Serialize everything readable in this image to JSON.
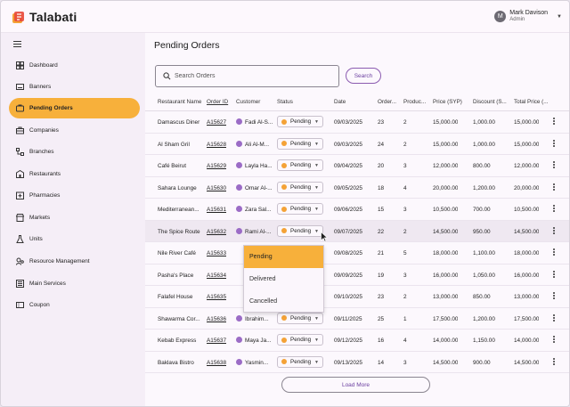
{
  "app": {
    "name": "Talabati"
  },
  "user": {
    "initial": "M",
    "name": "Mark Davison",
    "role": "Admin"
  },
  "sidebar": {
    "items": [
      {
        "label": "Dashboard",
        "icon": "dashboard-icon"
      },
      {
        "label": "Banners",
        "icon": "banner-icon"
      },
      {
        "label": "Pending Orders",
        "icon": "pending-orders-icon",
        "active": true
      },
      {
        "label": "Companies",
        "icon": "briefcase-icon"
      },
      {
        "label": "Branches",
        "icon": "branches-icon"
      },
      {
        "label": "Restaurants",
        "icon": "restaurant-icon"
      },
      {
        "label": "Pharmacies",
        "icon": "pharmacy-icon"
      },
      {
        "label": "Markets",
        "icon": "market-icon"
      },
      {
        "label": "Units",
        "icon": "flask-icon"
      },
      {
        "label": "Resource Management",
        "icon": "resource-icon"
      },
      {
        "label": "Main Services",
        "icon": "services-icon"
      },
      {
        "label": "Coupon",
        "icon": "coupon-icon"
      }
    ]
  },
  "page": {
    "title": "Pending Orders",
    "search_placeholder": "Search Orders",
    "search_button": "Search",
    "load_more": "Load More"
  },
  "table": {
    "columns": [
      "Restaurant Name",
      "Order ID",
      "Customer",
      "Status",
      "Date",
      "Order...",
      "Produc...",
      "Price (SYP)",
      "Discount (S...",
      "Total Price (..."
    ],
    "rows": [
      {
        "restaurant": "Damascus Diner",
        "order_id": "A15627",
        "customer": "Fadi Al-S...",
        "status": "Pending",
        "date": "09/03/2025",
        "order": "23",
        "products": "2",
        "price": "15,000.00",
        "discount": "1,000.00",
        "total": "15,000.00"
      },
      {
        "restaurant": "Al Sham Gril",
        "order_id": "A15628",
        "customer": "Ali Al-M...",
        "status": "Pending",
        "date": "09/03/2025",
        "order": "24",
        "products": "2",
        "price": "15,000.00",
        "discount": "1,000.00",
        "total": "15,000.00"
      },
      {
        "restaurant": "Café Beirut",
        "order_id": "A15629",
        "customer": "Layla Ha...",
        "status": "Pending",
        "date": "09/04/2025",
        "order": "20",
        "products": "3",
        "price": "12,000.00",
        "discount": "800.00",
        "total": "12,000.00"
      },
      {
        "restaurant": "Sahara Lounge",
        "order_id": "A15630",
        "customer": "Omar Al-...",
        "status": "Pending",
        "date": "09/05/2025",
        "order": "18",
        "products": "4",
        "price": "20,000.00",
        "discount": "1,200.00",
        "total": "20,000.00"
      },
      {
        "restaurant": "Mediterranean...",
        "order_id": "A15631",
        "customer": "Zara Sal...",
        "status": "Pending",
        "date": "09/06/2025",
        "order": "15",
        "products": "3",
        "price": "10,500.00",
        "discount": "700.00",
        "total": "10,500.00"
      },
      {
        "restaurant": "The Spice Route",
        "order_id": "A15632",
        "customer": "Rami Al-...",
        "status": "Pending",
        "date": "09/07/2025",
        "order": "22",
        "products": "2",
        "price": "14,500.00",
        "discount": "950.00",
        "total": "14,500.00"
      },
      {
        "restaurant": "Nile River Café",
        "order_id": "A15633",
        "customer": "",
        "status": "",
        "date": "09/08/2025",
        "order": "21",
        "products": "5",
        "price": "18,000.00",
        "discount": "1,100.00",
        "total": "18,000.00"
      },
      {
        "restaurant": "Pasha's Place",
        "order_id": "A15634",
        "customer": "",
        "status": "",
        "date": "09/09/2025",
        "order": "19",
        "products": "3",
        "price": "16,000.00",
        "discount": "1,050.00",
        "total": "16,000.00"
      },
      {
        "restaurant": "Falafel House",
        "order_id": "A15635",
        "customer": "",
        "status": "",
        "date": "09/10/2025",
        "order": "23",
        "products": "2",
        "price": "13,000.00",
        "discount": "850.00",
        "total": "13,000.00"
      },
      {
        "restaurant": "Shawarma Cor...",
        "order_id": "A15636",
        "customer": "Ibrahim...",
        "status": "Pending",
        "date": "09/11/2025",
        "order": "25",
        "products": "1",
        "price": "17,500.00",
        "discount": "1,200.00",
        "total": "17,500.00"
      },
      {
        "restaurant": "Kebab Express",
        "order_id": "A15637",
        "customer": "Maya Ja...",
        "status": "Pending",
        "date": "09/12/2025",
        "order": "16",
        "products": "4",
        "price": "14,000.00",
        "discount": "1,150.00",
        "total": "14,000.00"
      },
      {
        "restaurant": "Baklava Bistro",
        "order_id": "A15638",
        "customer": "Yasmin...",
        "status": "Pending",
        "date": "09/13/2025",
        "order": "14",
        "products": "3",
        "price": "14,500.00",
        "discount": "900.00",
        "total": "14,500.00"
      }
    ]
  },
  "status_dropdown": {
    "options": [
      "Pending",
      "Delivered",
      "Cancelled"
    ],
    "selected": "Pending"
  },
  "colors": {
    "accent": "#f7b03b",
    "brand_purple": "#6b3fa0",
    "status_dot": "#f4a236",
    "customer_dot": "#9b6cc6"
  }
}
